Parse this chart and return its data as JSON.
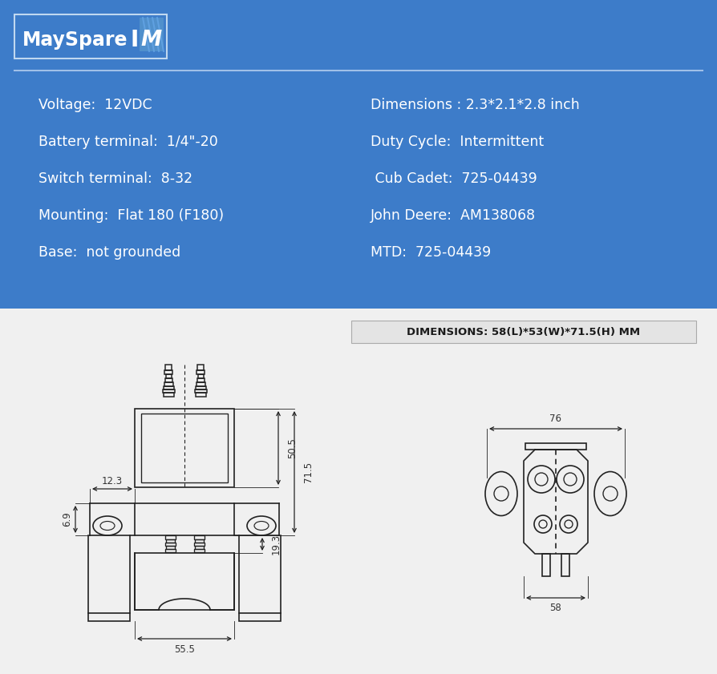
{
  "bg_blue": "#3d7cc9",
  "bg_white": "#f0f0f0",
  "text_white": "#ffffff",
  "text_dark": "#1a1a1a",
  "line_color": "#222222",
  "dim_color": "#333333",
  "logo_text": "MaySpare",
  "separator_color": "#a0c0e8",
  "specs_left": [
    "Voltage:  12VDC",
    "Battery terminal:  1/4\"-20",
    "Switch terminal:  8-32",
    "Mounting:  Flat 180 (F180)",
    "Base:  not grounded"
  ],
  "specs_right": [
    "Dimensions : 2.3*2.1*2.8 inch",
    "Duty Cycle:  Intermittent",
    " Cub Cadet:  725-04439",
    "John Deere:  AM138068",
    "MTD:  725-04439"
  ],
  "dim_label": "DIMENSIONS: 58(L)*53(W)*71.5(H) MM"
}
